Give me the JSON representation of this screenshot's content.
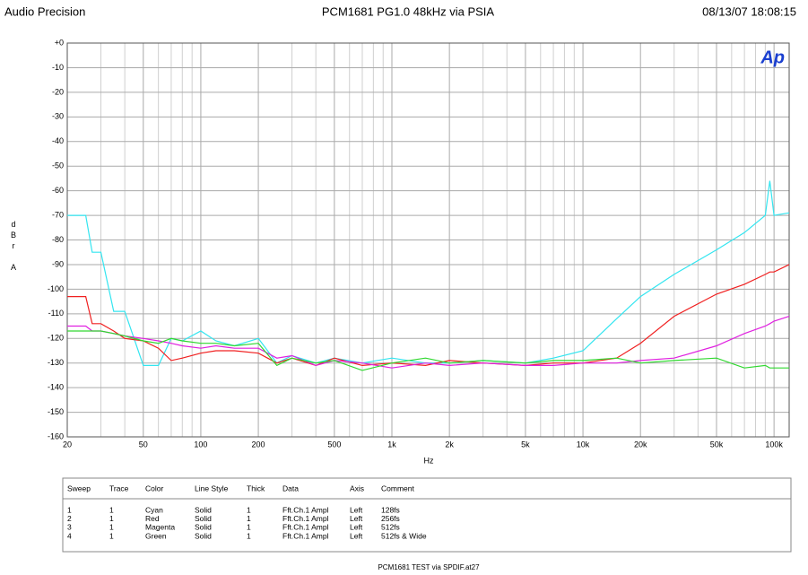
{
  "header": {
    "left": "Audio Precision",
    "date": "08/13/07 18:08:15"
  },
  "chart_data": {
    "type": "line",
    "title": "PCM1681 PG1.0 48kHz via PSIA",
    "logo": "Ap",
    "xlabel": "Hz",
    "ylabel": "dBr A",
    "xscale": "log",
    "grid": true,
    "xlim": [
      20,
      120000
    ],
    "ylim": [
      -160,
      0
    ],
    "xticks": [
      20,
      50,
      100,
      200,
      500,
      {
        "value": 1000,
        "label": "1k"
      },
      {
        "value": 2000,
        "label": "2k"
      },
      {
        "value": 5000,
        "label": "5k"
      },
      {
        "value": 10000,
        "label": "10k"
      },
      {
        "value": 20000,
        "label": "20k"
      },
      {
        "value": 50000,
        "label": "50k"
      },
      {
        "value": 100000,
        "label": "100k"
      }
    ],
    "xminor": [
      30,
      40,
      60,
      70,
      80,
      90,
      300,
      400,
      600,
      700,
      800,
      900,
      3000,
      4000,
      6000,
      7000,
      8000,
      9000,
      30000,
      40000,
      60000,
      70000,
      80000,
      90000
    ],
    "yticks": [
      {
        "value": 0,
        "label": "+0"
      },
      -10,
      -20,
      -30,
      -40,
      -50,
      -60,
      -70,
      -80,
      -90,
      -100,
      -110,
      -120,
      -130,
      -140,
      -150,
      -160
    ],
    "x": [
      20,
      25,
      27,
      30,
      35,
      40,
      50,
      60,
      70,
      80,
      100,
      120,
      150,
      200,
      250,
      300,
      400,
      500,
      700,
      1000,
      1500,
      2000,
      3000,
      5000,
      7000,
      10000,
      15000,
      20000,
      30000,
      50000,
      70000,
      90000,
      95000,
      100000,
      120000
    ],
    "series": [
      {
        "name": "128fs",
        "color": "#33e5f0",
        "values": [
          -70,
          -70,
          -85,
          -85,
          -109,
          -109,
          -131,
          -131,
          -120,
          -121,
          -117,
          -121,
          -123,
          -120,
          -130,
          -127,
          -130,
          -128,
          -130,
          -128,
          -130,
          -130,
          -129,
          -130,
          -128,
          -125,
          -112,
          -103,
          -94,
          -84,
          -77,
          -70,
          -56,
          -70,
          -69
        ]
      },
      {
        "name": "256fs",
        "color": "#f02020",
        "values": [
          -103,
          -103,
          -114,
          -114,
          -117,
          -120,
          -121,
          -124,
          -129,
          -128,
          -126,
          -125,
          -125,
          -126,
          -130,
          -128,
          -131,
          -128,
          -131,
          -130,
          -131,
          -129,
          -130,
          -131,
          -130,
          -130,
          -128,
          -122,
          -111,
          -102,
          -98,
          -94,
          -93,
          -93,
          -90
        ]
      },
      {
        "name": "512fs",
        "color": "#e020e0",
        "values": [
          -115,
          -115,
          -117,
          -117,
          -118,
          -119,
          -120,
          -121,
          -122,
          -123,
          -124,
          -123,
          -124,
          -124,
          -128,
          -127,
          -131,
          -129,
          -130,
          -132,
          -130,
          -131,
          -130,
          -131,
          -131,
          -130,
          -130,
          -129,
          -128,
          -123,
          -118,
          -115,
          -114,
          -113,
          -111
        ]
      },
      {
        "name": "512fs & Wide",
        "color": "#30d830",
        "values": [
          -117,
          -117,
          -117,
          -117,
          -118,
          -119,
          -121,
          -122,
          -120,
          -121,
          -122,
          -122,
          -123,
          -122,
          -131,
          -128,
          -130,
          -129,
          -133,
          -130,
          -128,
          -130,
          -129,
          -130,
          -129,
          -129,
          -128,
          -130,
          -129,
          -128,
          -132,
          -131,
          -132,
          -132,
          -132
        ]
      }
    ]
  },
  "legend_table": {
    "columns": [
      "Sweep",
      "Trace",
      "Color",
      "Line Style",
      "Thick",
      "Data",
      "Axis",
      "Comment"
    ],
    "rows": [
      [
        "1",
        "1",
        "Cyan",
        "Solid",
        "1",
        "Fft.Ch.1 Ampl",
        "Left"
      ],
      [
        "2",
        "1",
        "Red",
        "Solid",
        "1",
        "Fft.Ch.1 Ampl",
        "Left"
      ],
      [
        "3",
        "1",
        "Magenta",
        "Solid",
        "1",
        "Fft.Ch.1 Ampl",
        "Left"
      ],
      [
        "4",
        "1",
        "Green",
        "Solid",
        "1",
        "Fft.Ch.1 Ampl",
        "Left"
      ]
    ]
  },
  "footer": "PCM1681 TEST via SPDIF.at27"
}
